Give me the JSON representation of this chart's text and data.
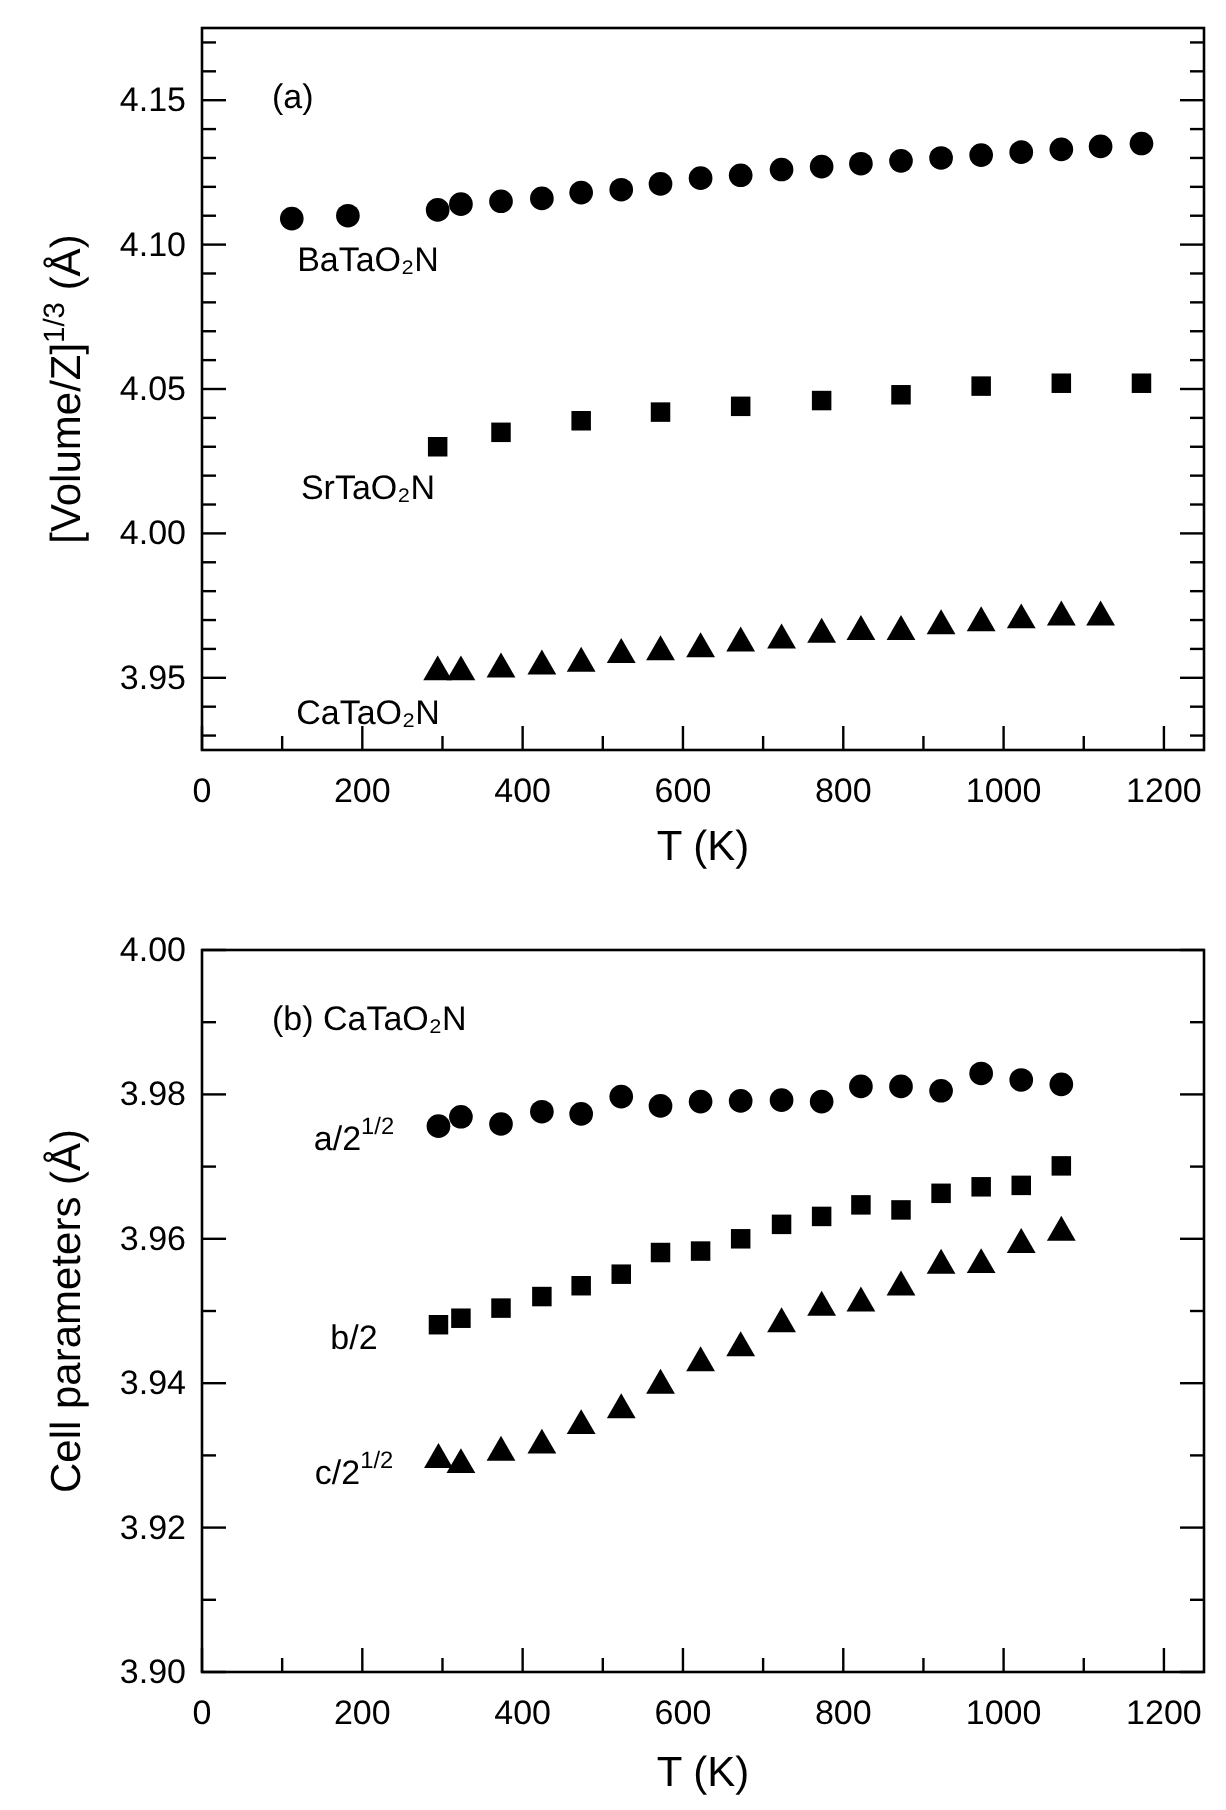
{
  "chart_data": [
    {
      "type": "scatter",
      "xlabel": "T (K)",
      "ylabel": "[Volume/Z]$^{1/3}$ (Å)",
      "xlim": [
        0,
        1250
      ],
      "ylim": [
        3.925,
        4.175
      ],
      "xticks": [
        0,
        {
          "value": 100,
          "label": null
        },
        200,
        {
          "value": 300,
          "label": null
        },
        400,
        {
          "value": 500,
          "label": null
        },
        600,
        {
          "value": 700,
          "label": null
        },
        800,
        {
          "value": 900,
          "label": null
        },
        1000,
        {
          "value": 1100,
          "label": null
        },
        1200
      ],
      "yticks": [
        {
          "value": 3.93,
          "label": null
        },
        {
          "value": 3.94,
          "label": null
        },
        {
          "value": 3.95,
          "label": "3.95"
        },
        {
          "value": 3.96,
          "label": null
        },
        {
          "value": 3.97,
          "label": null
        },
        {
          "value": 3.98,
          "label": null
        },
        {
          "value": 3.99,
          "label": null
        },
        {
          "value": 4.0,
          "label": "4.00"
        },
        {
          "value": 4.01,
          "label": null
        },
        {
          "value": 4.02,
          "label": null
        },
        {
          "value": 4.03,
          "label": null
        },
        {
          "value": 4.04,
          "label": null
        },
        {
          "value": 4.05,
          "label": "4.05"
        },
        {
          "value": 4.06,
          "label": null
        },
        {
          "value": 4.07,
          "label": null
        },
        {
          "value": 4.08,
          "label": null
        },
        {
          "value": 4.09,
          "label": null
        },
        {
          "value": 4.1,
          "label": "4.10"
        },
        {
          "value": 4.11,
          "label": null
        },
        {
          "value": 4.12,
          "label": null
        },
        {
          "value": 4.13,
          "label": null
        },
        {
          "value": 4.14,
          "label": null
        },
        {
          "value": 4.15,
          "label": "4.15"
        },
        {
          "value": 4.16,
          "label": null
        },
        {
          "value": 4.17,
          "label": null
        }
      ],
      "series": [
        {
          "name": "BaTaO₂N",
          "color": "#000000",
          "marker": "circle",
          "x": [
            112,
            182,
            294,
            323,
            373,
            424,
            473,
            523,
            572,
            622,
            672,
            723,
            773,
            822,
            872,
            922,
            972,
            1022,
            1072,
            1121,
            1172
          ],
          "values": [
            4.109,
            4.11,
            4.112,
            4.114,
            4.115,
            4.116,
            4.118,
            4.119,
            4.121,
            4.123,
            4.124,
            4.126,
            4.127,
            4.128,
            4.129,
            4.13,
            4.131,
            4.132,
            4.133,
            4.134,
            4.135
          ]
        },
        {
          "name": "SrTaO₂N",
          "color": "#000000",
          "marker": "square",
          "x": [
            294,
            373,
            473,
            572,
            672,
            773,
            872,
            972,
            1072,
            1172
          ],
          "values": [
            4.03,
            4.035,
            4.039,
            4.042,
            4.044,
            4.046,
            4.048,
            4.051,
            4.052,
            4.052
          ]
        },
        {
          "name": "CaTaO₂N",
          "color": "#000000",
          "marker": "triangle",
          "x": [
            294,
            323,
            373,
            424,
            473,
            523,
            572,
            622,
            672,
            723,
            773,
            822,
            872,
            922,
            972,
            1022,
            1072,
            1121
          ],
          "values": [
            3.952,
            3.952,
            3.953,
            3.954,
            3.955,
            3.958,
            3.959,
            3.96,
            3.962,
            3.963,
            3.965,
            3.966,
            3.966,
            3.968,
            3.969,
            3.97,
            3.971,
            3.971
          ]
        }
      ],
      "annotations": [
        "(a)"
      ]
    },
    {
      "type": "scatter",
      "xlabel": "T (K)",
      "ylabel": "Cell parameters (Å)",
      "xlim": [
        0,
        1250
      ],
      "ylim": [
        3.9,
        4.0
      ],
      "xticks": [
        0,
        {
          "value": 100,
          "label": null
        },
        200,
        {
          "value": 300,
          "label": null
        },
        400,
        {
          "value": 500,
          "label": null
        },
        600,
        {
          "value": 700,
          "label": null
        },
        800,
        {
          "value": 900,
          "label": null
        },
        1000,
        {
          "value": 1100,
          "label": null
        },
        1200
      ],
      "yticks": [
        {
          "value": 3.9,
          "label": "3.90"
        },
        {
          "value": 3.91,
          "label": null
        },
        {
          "value": 3.92,
          "label": "3.92"
        },
        {
          "value": 3.93,
          "label": null
        },
        {
          "value": 3.94,
          "label": "3.94"
        },
        {
          "value": 3.95,
          "label": null
        },
        {
          "value": 3.96,
          "label": "3.96"
        },
        {
          "value": 3.97,
          "label": null
        },
        {
          "value": 3.98,
          "label": "3.98"
        },
        {
          "value": 3.99,
          "label": null
        },
        {
          "value": 4.0,
          "label": "4.00"
        }
      ],
      "series": [
        {
          "name": "a/2$^{1/2}$",
          "color": "#000000",
          "marker": "circle",
          "x": [
            295,
            323,
            373,
            424,
            473,
            523,
            572,
            622,
            672,
            723,
            773,
            822,
            872,
            922,
            972,
            1022,
            1072
          ],
          "values": [
            3.9756,
            3.9769,
            3.9759,
            3.9776,
            3.9773,
            3.9797,
            3.9784,
            3.979,
            3.9791,
            3.9792,
            3.979,
            3.9811,
            3.9811,
            3.9805,
            3.9829,
            3.982,
            3.9814
          ]
        },
        {
          "name": "b/2",
          "color": "#000000",
          "marker": "square",
          "x": [
            295,
            323,
            373,
            424,
            473,
            523,
            572,
            622,
            672,
            723,
            773,
            822,
            872,
            922,
            972,
            1022,
            1072
          ],
          "values": [
            3.9481,
            3.949,
            3.9504,
            3.952,
            3.9535,
            3.9551,
            3.9581,
            3.9583,
            3.96,
            3.962,
            3.9631,
            3.9647,
            3.964,
            3.9663,
            3.9672,
            3.9674,
            3.9701
          ]
        },
        {
          "name": "c/2$^{1/2}$",
          "color": "#000000",
          "marker": "triangle",
          "x": [
            295,
            323,
            373,
            424,
            473,
            523,
            572,
            622,
            672,
            723,
            773,
            822,
            872,
            922,
            972,
            1022,
            1072
          ],
          "values": [
            3.9294,
            3.9287,
            3.9304,
            3.9314,
            3.9341,
            3.9363,
            3.9397,
            3.9428,
            3.9449,
            3.9482,
            3.9505,
            3.9511,
            3.9533,
            3.9563,
            3.9564,
            3.9592,
            3.9609
          ]
        }
      ],
      "annotations": [
        "(b) CaTaO₂N"
      ]
    }
  ]
}
